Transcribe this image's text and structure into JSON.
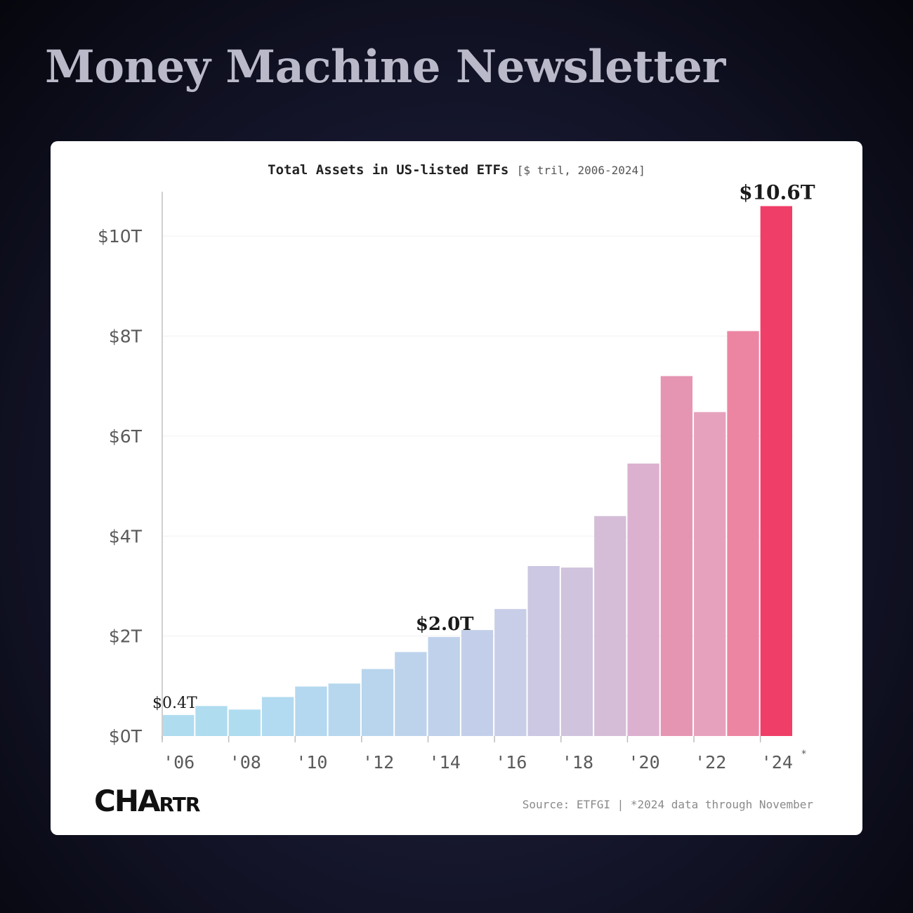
{
  "newsletter_title": "Money Machine Newsletter",
  "chart_data": {
    "type": "bar",
    "title": "Total Assets in US-listed ETFs",
    "subtitle": "[$ tril, 2006-2024]",
    "categories": [
      "2006",
      "2007",
      "2008",
      "2009",
      "2010",
      "2011",
      "2012",
      "2013",
      "2014",
      "2015",
      "2016",
      "2017",
      "2018",
      "2019",
      "2020",
      "2021",
      "2022",
      "2023",
      "2024"
    ],
    "values": [
      0.42,
      0.6,
      0.53,
      0.78,
      0.99,
      1.05,
      1.34,
      1.68,
      1.98,
      2.12,
      2.54,
      3.4,
      3.37,
      4.4,
      5.45,
      7.2,
      6.48,
      8.1,
      10.6
    ],
    "colors": [
      "#b0dcf0",
      "#b0dcf0",
      "#b0dcf0",
      "#b2daf0",
      "#b4d8ef",
      "#b6d7ee",
      "#b9d5ed",
      "#bdd3ec",
      "#c0d1eb",
      "#c3cfea",
      "#c8cde8",
      "#ccc7e2",
      "#d0c3de",
      "#d5bdd8",
      "#dcb1d0",
      "#e595b2",
      "#e6a2bd",
      "#ec85a2",
      "#ef3e68"
    ],
    "ylim": [
      0,
      11
    ],
    "yticks": [
      0,
      2,
      4,
      6,
      8,
      10
    ],
    "ytick_labels": [
      "$0T",
      "$2T",
      "$4T",
      "$6T",
      "$8T",
      "$10T"
    ],
    "xtick_labels": [
      "'06",
      "'08",
      "'10",
      "'12",
      "'14",
      "'16",
      "'18",
      "'20",
      "'22",
      "'24"
    ],
    "xtick_footnote_mark": "*",
    "annotations": [
      {
        "category": "2006",
        "text": "$0.4T",
        "emphasis": "normal"
      },
      {
        "category": "2014",
        "text": "$2.0T",
        "emphasis": "bold"
      },
      {
        "category": "2024",
        "text": "$10.6T",
        "emphasis": "bold"
      }
    ],
    "grid": "horizontal-faint"
  },
  "logo": {
    "big": "CHA",
    "small": "RTR"
  },
  "footnote": "Source: ETFGI | *2024 data through November"
}
